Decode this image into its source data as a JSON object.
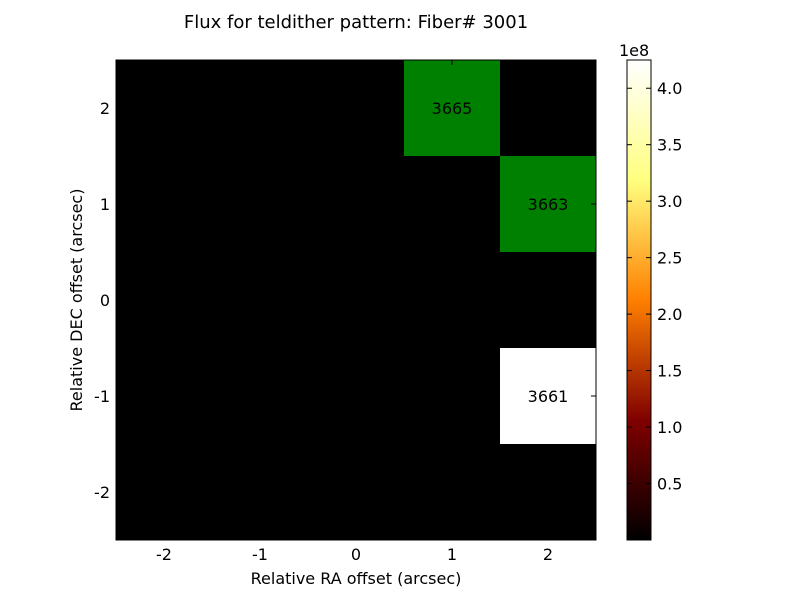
{
  "chart_data": {
    "type": "heatmap",
    "title": "Flux for teldither pattern: Fiber# 3001",
    "xlabel": "Relative RA offset (arcsec)",
    "ylabel": "Relative DEC offset (arcsec)",
    "x_ticks": [
      "-2",
      "-1",
      "0",
      "1",
      "2"
    ],
    "y_ticks": [
      "2",
      "1",
      "0",
      "-1",
      "-2"
    ],
    "x_values": [
      -2,
      -1,
      0,
      1,
      2
    ],
    "y_values": [
      2,
      1,
      0,
      -1,
      -2
    ],
    "grid": false,
    "background_color": "#000000",
    "cells": [
      {
        "x": 1,
        "y": 2,
        "label": "3665",
        "color": "#008000"
      },
      {
        "x": 2,
        "y": 1,
        "label": "3663",
        "color": "#008000"
      },
      {
        "x": 2,
        "y": -1,
        "label": "3661",
        "color": "#ffffff"
      }
    ],
    "colorbar": {
      "colormap": "afmhot",
      "multiplier_label": "1e8",
      "ticks": [
        "0.5",
        "1.0",
        "1.5",
        "2.0",
        "2.5",
        "3.0",
        "3.5",
        "4.0"
      ],
      "tick_values": [
        0.5,
        1.0,
        1.5,
        2.0,
        2.5,
        3.0,
        3.5,
        4.0
      ],
      "range": [
        0.0,
        4.25
      ]
    }
  }
}
